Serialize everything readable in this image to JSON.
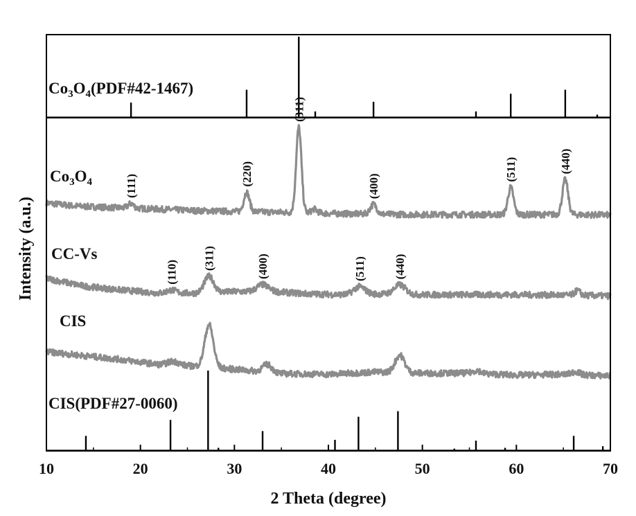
{
  "chart_data": {
    "type": "line",
    "xlabel": "2 Theta (degree)",
    "ylabel": "Intensity (a.u.)",
    "xlim": [
      10,
      70
    ],
    "x_ticks": [
      "10",
      "20",
      "30",
      "40",
      "50",
      "60",
      "70"
    ],
    "colors": {
      "pattern": "#8c8c8c",
      "reference": "#000000",
      "frame": "#000000"
    },
    "references": [
      {
        "name_parts": [
          [
            "Co",
            "n"
          ],
          [
            "3",
            "s"
          ],
          [
            "O",
            "n"
          ],
          [
            "4",
            "s"
          ],
          [
            "(PDF#42-1467)",
            "n"
          ]
        ],
        "lines": [
          {
            "x": 19.0,
            "rel": 0.18
          },
          {
            "x": 31.3,
            "rel": 0.34
          },
          {
            "x": 36.85,
            "rel": 1.0
          },
          {
            "x": 38.6,
            "rel": 0.07
          },
          {
            "x": 44.8,
            "rel": 0.19
          },
          {
            "x": 55.7,
            "rel": 0.07
          },
          {
            "x": 59.4,
            "rel": 0.29
          },
          {
            "x": 65.2,
            "rel": 0.34
          },
          {
            "x": 68.6,
            "rel": 0.03
          }
        ]
      },
      {
        "name_parts": [
          [
            "CIS(PDF#27-0060)",
            "n"
          ]
        ],
        "lines": [
          {
            "x": 14.2,
            "rel": 0.18
          },
          {
            "x": 23.2,
            "rel": 0.38
          },
          {
            "x": 27.2,
            "rel": 1.0
          },
          {
            "x": 28.3,
            "rel": 0.03
          },
          {
            "x": 33.0,
            "rel": 0.24
          },
          {
            "x": 40.7,
            "rel": 0.13
          },
          {
            "x": 43.2,
            "rel": 0.42
          },
          {
            "x": 47.4,
            "rel": 0.49
          },
          {
            "x": 53.4,
            "rel": 0.02
          },
          {
            "x": 55.7,
            "rel": 0.12
          },
          {
            "x": 58.8,
            "rel": 0.03
          },
          {
            "x": 66.1,
            "rel": 0.18
          },
          {
            "x": 69.2,
            "rel": 0.05
          }
        ]
      }
    ],
    "series": [
      {
        "name_parts": [
          [
            "Co",
            "n"
          ],
          [
            "3",
            "s"
          ],
          [
            "O",
            "n"
          ],
          [
            "4",
            "s"
          ]
        ],
        "baseline": [
          [
            10,
            0.0
          ],
          [
            13,
            -0.08
          ],
          [
            17,
            -0.12
          ],
          [
            22,
            -0.16
          ],
          [
            26,
            -0.2
          ],
          [
            30,
            -0.22
          ],
          [
            35,
            -0.24
          ],
          [
            40,
            -0.27
          ],
          [
            45,
            -0.29
          ],
          [
            50,
            -0.3
          ],
          [
            55,
            -0.3
          ],
          [
            60,
            -0.3
          ],
          [
            65,
            -0.3
          ],
          [
            70,
            -0.31
          ]
        ],
        "peaks": [
          {
            "x": 19.0,
            "h": 0.12,
            "w": 0.3
          },
          {
            "x": 31.3,
            "h": 0.5,
            "w": 0.3
          },
          {
            "x": 36.85,
            "h": 2.2,
            "w": 0.28
          },
          {
            "x": 38.5,
            "h": 0.1,
            "w": 0.3
          },
          {
            "x": 44.8,
            "h": 0.25,
            "w": 0.35
          },
          {
            "x": 59.4,
            "h": 0.7,
            "w": 0.3
          },
          {
            "x": 65.2,
            "h": 0.9,
            "w": 0.3
          }
        ],
        "annotations": [
          {
            "text": "(111)",
            "x": 19.0
          },
          {
            "text": "(220)",
            "x": 31.3
          },
          {
            "text": "(311)",
            "x": 36.85
          },
          {
            "text": "(400)",
            "x": 44.8
          },
          {
            "text": "(511)",
            "x": 59.4
          },
          {
            "text": "(440)",
            "x": 65.2
          }
        ]
      },
      {
        "name_parts": [
          [
            "CC-Vs",
            "n"
          ]
        ],
        "baseline": [
          [
            10,
            0.0
          ],
          [
            14,
            -0.2
          ],
          [
            18,
            -0.3
          ],
          [
            22,
            -0.38
          ],
          [
            26,
            -0.38
          ],
          [
            30,
            -0.34
          ],
          [
            34,
            -0.34
          ],
          [
            38,
            -0.4
          ],
          [
            42,
            -0.42
          ],
          [
            46,
            -0.4
          ],
          [
            50,
            -0.42
          ],
          [
            55,
            -0.42
          ],
          [
            60,
            -0.42
          ],
          [
            65,
            -0.43
          ],
          [
            70,
            -0.45
          ]
        ],
        "peaks": [
          {
            "x": 23.3,
            "h": 0.08,
            "w": 0.5
          },
          {
            "x": 27.3,
            "h": 0.42,
            "w": 0.5
          },
          {
            "x": 33.0,
            "h": 0.18,
            "w": 0.6
          },
          {
            "x": 43.3,
            "h": 0.2,
            "w": 0.6
          },
          {
            "x": 47.6,
            "h": 0.24,
            "w": 0.6
          },
          {
            "x": 66.5,
            "h": 0.12,
            "w": 0.3
          }
        ],
        "annotations": [
          {
            "text": "(110)",
            "x": 23.3
          },
          {
            "text": "(311)",
            "x": 27.3
          },
          {
            "text": "(400)",
            "x": 33.0
          },
          {
            "text": "(511)",
            "x": 43.3
          },
          {
            "text": "(440)",
            "x": 47.6
          }
        ]
      },
      {
        "name_parts": [
          [
            "CIS",
            "n"
          ]
        ],
        "baseline": [
          [
            10,
            0.0
          ],
          [
            14,
            -0.1
          ],
          [
            18,
            -0.2
          ],
          [
            22,
            -0.33
          ],
          [
            26,
            -0.37
          ],
          [
            30,
            -0.45
          ],
          [
            35,
            -0.56
          ],
          [
            40,
            -0.58
          ],
          [
            45,
            -0.52
          ],
          [
            50,
            -0.55
          ],
          [
            55,
            -0.55
          ],
          [
            60,
            -0.6
          ],
          [
            65,
            -0.58
          ],
          [
            70,
            -0.62
          ]
        ],
        "peaks": [
          {
            "x": 23.5,
            "h": 0.1,
            "w": 0.6
          },
          {
            "x": 27.3,
            "h": 1.1,
            "w": 0.45
          },
          {
            "x": 33.5,
            "h": 0.2,
            "w": 0.5
          },
          {
            "x": 47.6,
            "h": 0.45,
            "w": 0.5
          },
          {
            "x": 55.8,
            "h": 0.08,
            "w": 0.4
          },
          {
            "x": 66.3,
            "h": 0.08,
            "w": 0.4
          }
        ],
        "annotations": []
      }
    ]
  }
}
